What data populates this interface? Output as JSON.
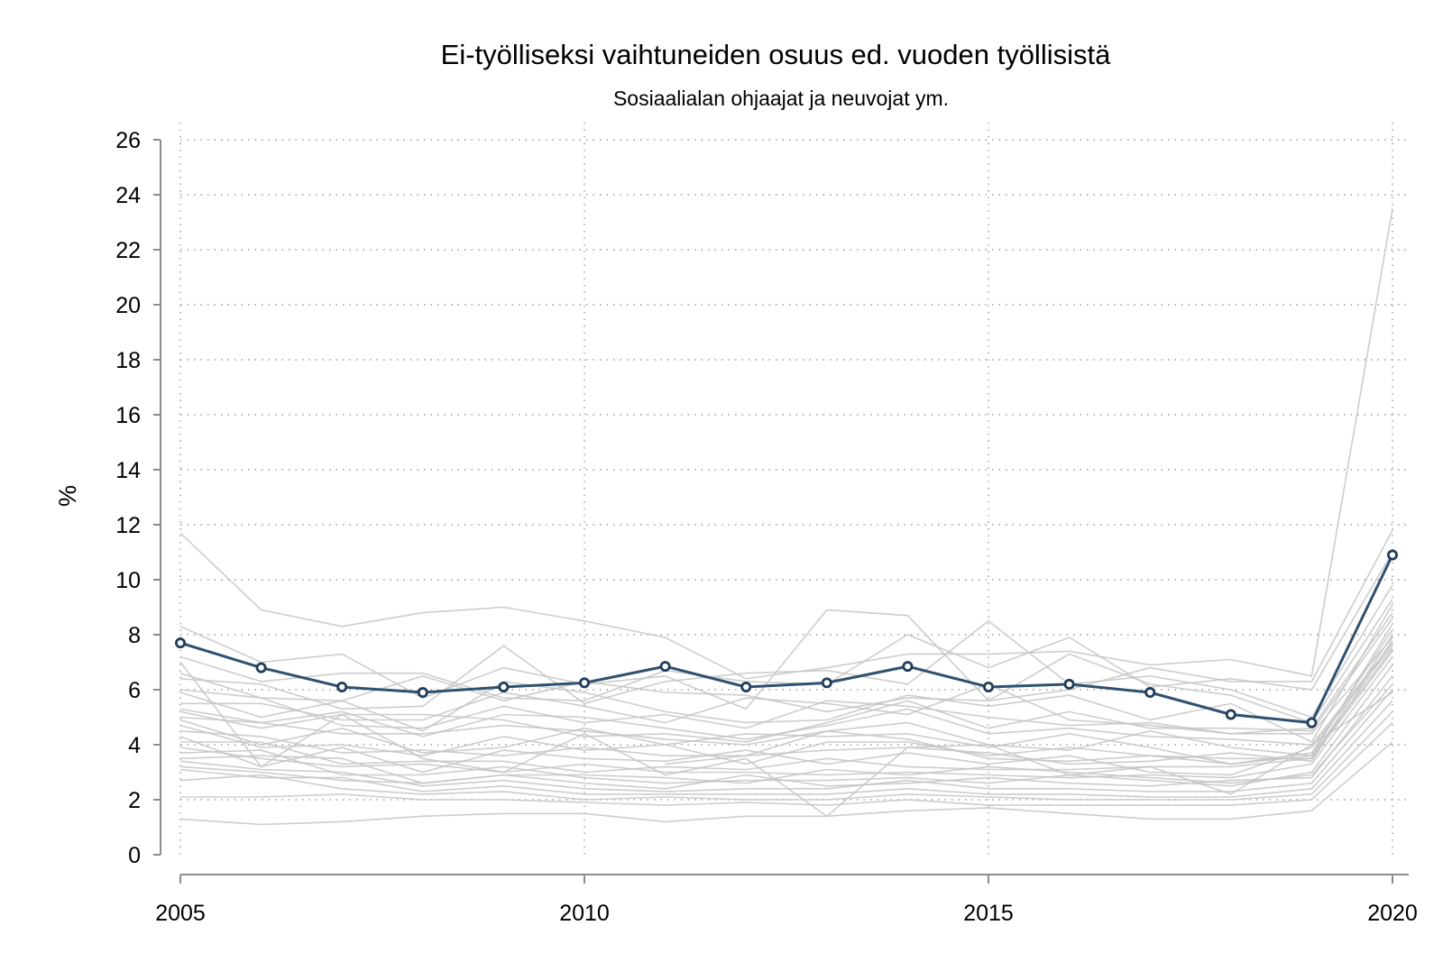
{
  "chart_data": {
    "type": "line",
    "title": "Ei-työlliseksi vaihtuneiden osuus ed. vuoden työllisistä",
    "subtitle": "Sosiaalialan ohjaajat ja neuvojat ym.",
    "ylabel": "%",
    "xlabel": "",
    "x": [
      2005,
      2006,
      2007,
      2008,
      2009,
      2010,
      2011,
      2012,
      2013,
      2014,
      2015,
      2016,
      2017,
      2018,
      2019,
      2020
    ],
    "xlim": [
      2005,
      2020
    ],
    "ylim": [
      0,
      26
    ],
    "x_ticks": [
      "2005",
      "2010",
      "2015",
      "2020"
    ],
    "y_ticks": [
      "0",
      "2",
      "4",
      "6",
      "8",
      "10",
      "12",
      "14",
      "16",
      "18",
      "20",
      "22",
      "24",
      "26"
    ],
    "grid": true,
    "highlight_color": "#2f5170",
    "background_color": "#c4c4c4",
    "series": [
      {
        "highlight": true,
        "values": [
          7.7,
          6.8,
          6.1,
          5.9,
          6.1,
          6.25,
          6.85,
          6.1,
          6.25,
          6.85,
          6.1,
          6.2,
          5.9,
          5.1,
          4.8,
          10.9
        ]
      },
      {
        "values": [
          11.7,
          8.9,
          8.3,
          8.8,
          9.0,
          8.5,
          7.9,
          6.4,
          6.8,
          7.3,
          7.3,
          7.4,
          6.9,
          7.1,
          6.5,
          23.5
        ]
      },
      {
        "values": [
          8.3,
          7.0,
          7.3,
          5.7,
          6.8,
          6.2,
          6.5,
          5.3,
          8.9,
          8.7,
          5.6,
          6.0,
          6.8,
          6.3,
          6.3,
          11.8
        ]
      },
      {
        "values": [
          7.2,
          6.3,
          6.6,
          6.6,
          5.7,
          5.6,
          6.7,
          6.3,
          6.2,
          8.0,
          6.8,
          7.9,
          6.1,
          6.4,
          6.0,
          11.0
        ]
      },
      {
        "values": [
          6.4,
          6.2,
          5.3,
          5.4,
          7.6,
          5.5,
          6.3,
          6.6,
          6.7,
          6.2,
          8.5,
          6.2,
          6.5,
          6.0,
          5.0,
          9.8
        ]
      },
      {
        "values": [
          6.0,
          5.7,
          5.6,
          6.5,
          5.6,
          6.3,
          5.9,
          5.8,
          5.2,
          5.7,
          5.6,
          7.3,
          6.2,
          5.8,
          4.8,
          9.3
        ]
      },
      {
        "values": [
          5.9,
          5.0,
          5.6,
          4.5,
          6.3,
          5.9,
          5.2,
          4.8,
          4.9,
          5.8,
          5.4,
          5.8,
          4.9,
          5.5,
          4.1,
          9.1
        ]
      },
      {
        "values": [
          5.5,
          5.5,
          4.9,
          4.9,
          5.9,
          5.4,
          4.8,
          5.7,
          5.5,
          5.1,
          6.2,
          4.9,
          4.7,
          4.4,
          4.6,
          8.8
        ]
      },
      {
        "values": [
          5.2,
          4.6,
          5.1,
          5.1,
          4.9,
          4.3,
          4.4,
          4.1,
          4.8,
          5.6,
          4.6,
          5.2,
          4.6,
          4.6,
          4.5,
          8.6
        ]
      },
      {
        "values": [
          5.0,
          4.8,
          4.4,
          4.4,
          4.7,
          4.5,
          4.2,
          4.0,
          4.5,
          4.8,
          4.0,
          3.8,
          4.5,
          3.9,
          3.6,
          8.4
        ]
      },
      {
        "values": [
          4.9,
          4.0,
          4.6,
          3.7,
          3.9,
          4.6,
          4.0,
          4.4,
          4.3,
          4.4,
          3.9,
          4.4,
          3.9,
          3.3,
          3.7,
          8.2
        ]
      },
      {
        "values": [
          4.7,
          3.9,
          4.0,
          3.6,
          4.3,
          3.8,
          4.0,
          3.3,
          4.1,
          4.1,
          3.6,
          3.9,
          3.6,
          3.5,
          3.5,
          8.0
        ]
      },
      {
        "values": [
          4.5,
          4.3,
          3.7,
          3.8,
          3.6,
          3.9,
          3.6,
          3.6,
          3.8,
          3.9,
          3.7,
          3.3,
          3.4,
          3.7,
          3.4,
          7.8
        ]
      },
      {
        "values": [
          4.3,
          3.2,
          3.9,
          3.0,
          3.8,
          3.5,
          3.4,
          3.8,
          3.3,
          3.7,
          3.3,
          3.6,
          3.0,
          2.9,
          3.9,
          7.6
        ]
      },
      {
        "values": [
          4.1,
          4.1,
          3.3,
          3.4,
          3.4,
          3.0,
          3.2,
          3.1,
          3.5,
          3.2,
          3.1,
          3.1,
          3.2,
          3.2,
          3.5,
          7.4
        ]
      },
      {
        "values": [
          3.9,
          3.5,
          3.2,
          3.3,
          3.0,
          3.3,
          3.0,
          3.0,
          2.9,
          3.0,
          2.9,
          2.8,
          2.9,
          2.8,
          3.3,
          7.2
        ]
      },
      {
        "values": [
          3.7,
          3.8,
          2.9,
          2.9,
          3.2,
          2.8,
          2.6,
          2.7,
          2.7,
          2.8,
          2.6,
          2.9,
          2.7,
          2.5,
          3.0,
          6.9
        ]
      },
      {
        "values": [
          3.5,
          3.6,
          3.5,
          2.6,
          2.9,
          2.6,
          2.4,
          2.9,
          2.5,
          2.6,
          2.8,
          2.6,
          2.5,
          2.7,
          2.8,
          6.5
        ]
      },
      {
        "values": [
          3.4,
          3.1,
          3.0,
          2.5,
          2.7,
          2.4,
          2.3,
          2.4,
          2.4,
          2.7,
          2.4,
          2.4,
          2.3,
          2.3,
          2.6,
          6.0
        ]
      },
      {
        "values": [
          3.1,
          2.8,
          2.8,
          2.3,
          2.5,
          2.2,
          2.2,
          2.2,
          2.2,
          2.4,
          2.2,
          2.2,
          2.1,
          2.1,
          2.4,
          5.6
        ]
      },
      {
        "values": [
          2.7,
          2.9,
          2.4,
          2.2,
          2.3,
          2.0,
          2.1,
          2.0,
          2.0,
          2.2,
          2.1,
          2.0,
          2.0,
          2.0,
          2.2,
          5.2
        ]
      },
      {
        "values": [
          2.1,
          2.1,
          2.2,
          2.0,
          2.0,
          1.9,
          1.8,
          1.9,
          1.8,
          2.0,
          1.8,
          1.8,
          1.8,
          1.8,
          2.0,
          4.8
        ]
      },
      {
        "values": [
          1.3,
          1.1,
          1.2,
          1.4,
          1.5,
          1.5,
          1.2,
          1.4,
          1.4,
          1.6,
          1.7,
          1.5,
          1.3,
          1.3,
          1.6,
          4.1
        ]
      },
      {
        "values": [
          5.3,
          4.8,
          5.2,
          4.3,
          5.1,
          5.0,
          4.6,
          4.2,
          4.7,
          5.3,
          4.4,
          4.6,
          4.3,
          4.2,
          4.0,
          7.7
        ]
      },
      {
        "values": [
          7.0,
          3.2,
          5.1,
          3.5,
          3.0,
          4.4,
          2.9,
          3.5,
          1.4,
          3.9,
          4.0,
          2.9,
          3.2,
          2.2,
          4.0,
          5.9
        ]
      },
      {
        "values": [
          6.6,
          5.7,
          4.7,
          4.6,
          5.4,
          4.8,
          5.1,
          4.6,
          5.6,
          5.4,
          5.0,
          4.7,
          4.8,
          4.4,
          4.4,
          7.9
        ]
      },
      {
        "values": [
          3.2,
          3.0,
          2.7,
          2.6,
          2.9,
          2.9,
          2.8,
          2.6,
          3.1,
          2.9,
          3.2,
          3.0,
          2.8,
          2.6,
          2.9,
          6.2
        ]
      },
      {
        "values": [
          null,
          null,
          null,
          null,
          null,
          null,
          3.3,
          3.6,
          4.5,
          4.2,
          3.5,
          3.4,
          3.6,
          3.3,
          3.6,
          7.5
        ]
      }
    ]
  }
}
